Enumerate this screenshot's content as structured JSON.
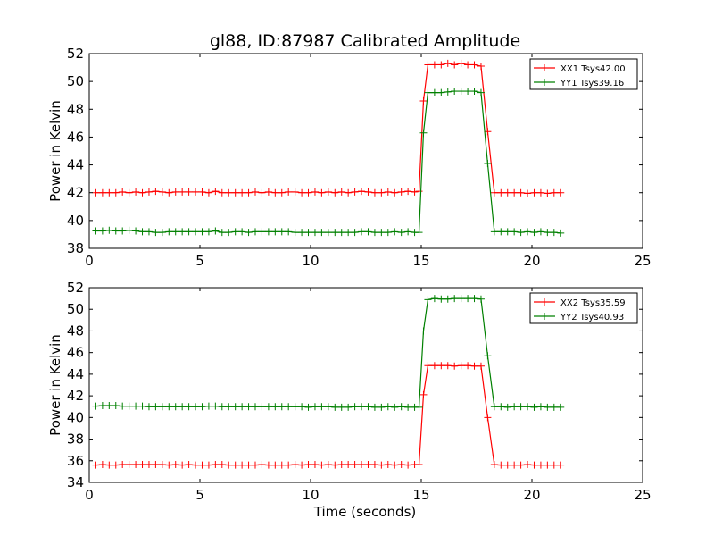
{
  "figure": {
    "title": "gl88, ID:87987 Calibrated Amplitude",
    "xlabel": "Time (seconds)"
  },
  "chart_data": [
    {
      "type": "line",
      "title": "gl88, ID:87987 Calibrated Amplitude",
      "xlabel": "",
      "ylabel": "Power in Kelvin",
      "xlim": [
        0,
        25
      ],
      "ylim": [
        38,
        52
      ],
      "xticks": [
        0,
        5,
        10,
        15,
        20,
        25
      ],
      "yticks": [
        38,
        40,
        42,
        44,
        46,
        48,
        50,
        52
      ],
      "grid": false,
      "legend": "top-right",
      "marker": "+",
      "series": [
        {
          "name": "XX1 Tsys42.00",
          "color": "#ff0000",
          "x": [
            0.3,
            0.6,
            0.9,
            1.2,
            1.5,
            1.8,
            2.1,
            2.4,
            2.7,
            3.0,
            3.3,
            3.6,
            3.9,
            4.2,
            4.5,
            4.8,
            5.1,
            5.4,
            5.7,
            6.0,
            6.3,
            6.6,
            6.9,
            7.2,
            7.5,
            7.8,
            8.1,
            8.4,
            8.7,
            9.0,
            9.3,
            9.6,
            9.9,
            10.2,
            10.5,
            10.8,
            11.1,
            11.4,
            11.7,
            12.0,
            12.3,
            12.6,
            12.9,
            13.2,
            13.5,
            13.8,
            14.1,
            14.4,
            14.7,
            14.9,
            15.1,
            15.3,
            15.6,
            15.9,
            16.2,
            16.5,
            16.8,
            17.1,
            17.4,
            17.7,
            18.0,
            18.3,
            18.6,
            18.9,
            19.2,
            19.5,
            19.8,
            20.1,
            20.4,
            20.7,
            21.0,
            21.3
          ],
          "y": [
            42.0,
            42.0,
            42.0,
            42.0,
            42.05,
            42.0,
            42.05,
            42.0,
            42.05,
            42.1,
            42.05,
            42.0,
            42.05,
            42.05,
            42.05,
            42.05,
            42.05,
            42.0,
            42.1,
            42.0,
            42.0,
            42.0,
            42.0,
            42.0,
            42.05,
            42.0,
            42.05,
            42.0,
            42.0,
            42.05,
            42.05,
            42.0,
            42.0,
            42.05,
            42.0,
            42.05,
            42.0,
            42.05,
            42.0,
            42.05,
            42.1,
            42.05,
            42.0,
            42.0,
            42.05,
            42.0,
            42.05,
            42.1,
            42.05,
            42.1,
            48.6,
            51.2,
            51.2,
            51.2,
            51.3,
            51.2,
            51.3,
            51.2,
            51.2,
            51.1,
            46.4,
            42.0,
            42.0,
            42.0,
            42.0,
            42.0,
            41.95,
            42.0,
            42.0,
            41.95,
            42.0,
            42.0
          ]
        },
        {
          "name": "YY1 Tsys39.16",
          "color": "#008000",
          "x": [
            0.3,
            0.6,
            0.9,
            1.2,
            1.5,
            1.8,
            2.1,
            2.4,
            2.7,
            3.0,
            3.3,
            3.6,
            3.9,
            4.2,
            4.5,
            4.8,
            5.1,
            5.4,
            5.7,
            6.0,
            6.3,
            6.6,
            6.9,
            7.2,
            7.5,
            7.8,
            8.1,
            8.4,
            8.7,
            9.0,
            9.3,
            9.6,
            9.9,
            10.2,
            10.5,
            10.8,
            11.1,
            11.4,
            11.7,
            12.0,
            12.3,
            12.6,
            12.9,
            13.2,
            13.5,
            13.8,
            14.1,
            14.4,
            14.7,
            14.9,
            15.1,
            15.3,
            15.6,
            15.9,
            16.2,
            16.5,
            16.8,
            17.1,
            17.4,
            17.7,
            18.0,
            18.3,
            18.6,
            18.9,
            19.2,
            19.5,
            19.8,
            20.1,
            20.4,
            20.7,
            21.0,
            21.3
          ],
          "y": [
            39.25,
            39.25,
            39.3,
            39.25,
            39.25,
            39.3,
            39.25,
            39.2,
            39.2,
            39.15,
            39.15,
            39.2,
            39.2,
            39.2,
            39.2,
            39.2,
            39.2,
            39.2,
            39.25,
            39.15,
            39.15,
            39.2,
            39.2,
            39.15,
            39.2,
            39.2,
            39.2,
            39.2,
            39.2,
            39.2,
            39.15,
            39.15,
            39.15,
            39.15,
            39.15,
            39.15,
            39.15,
            39.15,
            39.15,
            39.15,
            39.2,
            39.2,
            39.15,
            39.15,
            39.15,
            39.2,
            39.15,
            39.2,
            39.15,
            39.15,
            46.3,
            49.2,
            49.2,
            49.2,
            49.25,
            49.3,
            49.3,
            49.3,
            49.3,
            49.2,
            44.1,
            39.2,
            39.2,
            39.2,
            39.2,
            39.15,
            39.2,
            39.15,
            39.2,
            39.15,
            39.15,
            39.1
          ]
        }
      ]
    },
    {
      "type": "line",
      "title": "",
      "xlabel": "Time (seconds)",
      "ylabel": "Power in Kelvin",
      "xlim": [
        0,
        25
      ],
      "ylim": [
        34,
        52
      ],
      "xticks": [
        0,
        5,
        10,
        15,
        20,
        25
      ],
      "yticks": [
        34,
        36,
        38,
        40,
        42,
        44,
        46,
        48,
        50,
        52
      ],
      "grid": false,
      "legend": "top-right",
      "marker": "+",
      "series": [
        {
          "name": "XX2 Tsys35.59",
          "color": "#ff0000",
          "x": [
            0.3,
            0.6,
            0.9,
            1.2,
            1.5,
            1.8,
            2.1,
            2.4,
            2.7,
            3.0,
            3.3,
            3.6,
            3.9,
            4.2,
            4.5,
            4.8,
            5.1,
            5.4,
            5.7,
            6.0,
            6.3,
            6.6,
            6.9,
            7.2,
            7.5,
            7.8,
            8.1,
            8.4,
            8.7,
            9.0,
            9.3,
            9.6,
            9.9,
            10.2,
            10.5,
            10.8,
            11.1,
            11.4,
            11.7,
            12.0,
            12.3,
            12.6,
            12.9,
            13.2,
            13.5,
            13.8,
            14.1,
            14.4,
            14.7,
            14.9,
            15.1,
            15.3,
            15.6,
            15.9,
            16.2,
            16.5,
            16.8,
            17.1,
            17.4,
            17.7,
            18.0,
            18.3,
            18.6,
            18.9,
            19.2,
            19.5,
            19.8,
            20.1,
            20.4,
            20.7,
            21.0,
            21.3
          ],
          "y": [
            35.6,
            35.65,
            35.6,
            35.6,
            35.65,
            35.65,
            35.65,
            35.65,
            35.65,
            35.65,
            35.65,
            35.6,
            35.65,
            35.6,
            35.65,
            35.6,
            35.6,
            35.6,
            35.65,
            35.65,
            35.6,
            35.6,
            35.6,
            35.6,
            35.6,
            35.65,
            35.6,
            35.6,
            35.6,
            35.6,
            35.65,
            35.6,
            35.65,
            35.65,
            35.6,
            35.65,
            35.6,
            35.65,
            35.65,
            35.65,
            35.65,
            35.65,
            35.65,
            35.6,
            35.65,
            35.6,
            35.65,
            35.6,
            35.65,
            35.65,
            42.1,
            44.8,
            44.8,
            44.8,
            44.8,
            44.75,
            44.8,
            44.8,
            44.75,
            44.75,
            40.0,
            35.65,
            35.6,
            35.6,
            35.6,
            35.6,
            35.65,
            35.6,
            35.6,
            35.6,
            35.6,
            35.6
          ]
        },
        {
          "name": "YY2 Tsys40.93",
          "color": "#008000",
          "x": [
            0.3,
            0.6,
            0.9,
            1.2,
            1.5,
            1.8,
            2.1,
            2.4,
            2.7,
            3.0,
            3.3,
            3.6,
            3.9,
            4.2,
            4.5,
            4.8,
            5.1,
            5.4,
            5.7,
            6.0,
            6.3,
            6.6,
            6.9,
            7.2,
            7.5,
            7.8,
            8.1,
            8.4,
            8.7,
            9.0,
            9.3,
            9.6,
            9.9,
            10.2,
            10.5,
            10.8,
            11.1,
            11.4,
            11.7,
            12.0,
            12.3,
            12.6,
            12.9,
            13.2,
            13.5,
            13.8,
            14.1,
            14.4,
            14.7,
            14.9,
            15.1,
            15.3,
            15.6,
            15.9,
            16.2,
            16.5,
            16.8,
            17.1,
            17.4,
            17.7,
            18.0,
            18.3,
            18.6,
            18.9,
            19.2,
            19.5,
            19.8,
            20.1,
            20.4,
            20.7,
            21.0,
            21.3
          ],
          "y": [
            41.05,
            41.1,
            41.1,
            41.1,
            41.05,
            41.05,
            41.05,
            41.05,
            41.0,
            41.0,
            41.0,
            41.0,
            41.0,
            41.0,
            41.0,
            41.0,
            41.0,
            41.05,
            41.05,
            41.0,
            41.0,
            41.0,
            41.0,
            41.0,
            41.0,
            41.0,
            41.0,
            41.0,
            41.0,
            41.0,
            41.0,
            41.0,
            40.95,
            41.0,
            41.0,
            41.0,
            40.95,
            40.95,
            40.95,
            41.0,
            41.0,
            41.0,
            40.95,
            40.95,
            41.0,
            40.95,
            41.0,
            40.95,
            40.95,
            40.95,
            48.0,
            50.9,
            51.0,
            50.95,
            50.95,
            51.0,
            51.0,
            51.0,
            51.0,
            50.95,
            45.7,
            41.0,
            41.0,
            40.95,
            41.0,
            41.0,
            41.0,
            40.95,
            41.0,
            40.95,
            40.95,
            40.95
          ]
        }
      ]
    }
  ]
}
